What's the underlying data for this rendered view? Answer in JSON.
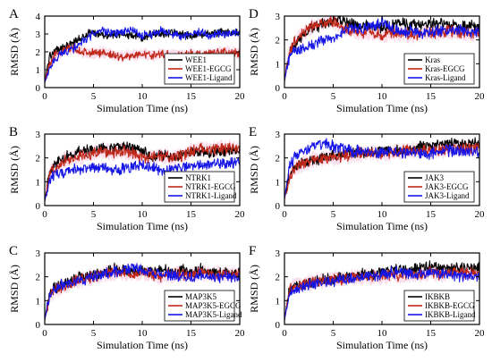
{
  "colors": {
    "black": "#000000",
    "red": "#c0281a",
    "blue": "#1515e6",
    "band_pink": "#f3b8d6"
  },
  "chart_data": [
    {
      "panel": "A",
      "type": "line",
      "xlabel": "Simulation Time (ns)",
      "ylabel": "RMSD (Å)",
      "xlim": [
        0,
        20
      ],
      "ylim": [
        0,
        4
      ],
      "xticks": [
        0,
        5,
        10,
        15,
        20
      ],
      "yticks": [
        0,
        1,
        2,
        3,
        4
      ],
      "legend_position": "right-lower",
      "series": [
        {
          "name": "WEE1",
          "color": "black",
          "x": [
            0,
            0.5,
            1,
            2,
            3,
            4,
            5,
            6,
            7,
            8,
            9,
            10,
            11,
            12,
            13,
            14,
            15,
            16,
            17,
            18,
            19,
            20
          ],
          "values": [
            0.3,
            1.8,
            2.0,
            2.3,
            2.5,
            2.9,
            3.1,
            3.0,
            2.9,
            3.0,
            2.9,
            2.8,
            3.0,
            3.0,
            3.1,
            3.0,
            2.9,
            3.0,
            3.0,
            3.1,
            3.1,
            3.1
          ]
        },
        {
          "name": "WEE1-EGCG",
          "color": "red",
          "x": [
            0,
            0.5,
            1,
            2,
            3,
            4,
            5,
            6,
            7,
            8,
            9,
            10,
            11,
            12,
            13,
            14,
            15,
            16,
            17,
            18,
            19,
            20
          ],
          "values": [
            0.3,
            1.4,
            1.8,
            2.1,
            2.2,
            2.0,
            1.9,
            2.0,
            1.8,
            1.7,
            1.8,
            1.9,
            1.8,
            1.9,
            1.8,
            1.8,
            1.9,
            1.8,
            1.9,
            2.0,
            2.0,
            1.9
          ]
        },
        {
          "name": "WEE1-Ligand",
          "color": "blue",
          "x": [
            0,
            0.5,
            1,
            2,
            3,
            4,
            5,
            6,
            7,
            8,
            9,
            10,
            11,
            12,
            13,
            14,
            15,
            16,
            17,
            18,
            19,
            20
          ],
          "values": [
            0.3,
            1.0,
            1.6,
            2.0,
            2.2,
            2.6,
            3.0,
            3.2,
            3.0,
            3.1,
            3.2,
            2.9,
            3.0,
            3.2,
            3.0,
            2.9,
            3.0,
            3.1,
            2.9,
            3.0,
            3.0,
            3.1
          ]
        }
      ]
    },
    {
      "panel": "B",
      "type": "line",
      "xlabel": "Simulation Time (ns)",
      "ylabel": "RMSD (Å)",
      "xlim": [
        0,
        20
      ],
      "ylim": [
        0,
        3
      ],
      "xticks": [
        0,
        5,
        10,
        15,
        20
      ],
      "yticks": [
        0,
        1,
        2,
        3
      ],
      "legend_position": "right-lower",
      "series": [
        {
          "name": "NTRK1",
          "color": "black",
          "x": [
            0,
            0.5,
            1,
            2,
            3,
            4,
            5,
            6,
            7,
            8,
            9,
            10,
            11,
            12,
            13,
            14,
            15,
            16,
            17,
            18,
            19,
            20
          ],
          "values": [
            0.2,
            1.4,
            1.8,
            2.0,
            2.2,
            2.3,
            2.3,
            2.4,
            2.4,
            2.5,
            2.4,
            2.3,
            2.0,
            2.1,
            2.0,
            2.1,
            2.2,
            2.3,
            2.2,
            2.3,
            2.3,
            2.3
          ]
        },
        {
          "name": "NTRK1-EGCG",
          "color": "red",
          "x": [
            0,
            0.5,
            1,
            2,
            3,
            4,
            5,
            6,
            7,
            8,
            9,
            10,
            11,
            12,
            13,
            14,
            15,
            16,
            17,
            18,
            19,
            20
          ],
          "values": [
            0.2,
            1.3,
            1.6,
            1.9,
            2.0,
            2.1,
            2.2,
            2.3,
            2.2,
            2.3,
            2.2,
            2.0,
            2.0,
            2.1,
            2.0,
            2.1,
            2.3,
            2.4,
            2.3,
            2.4,
            2.4,
            2.4
          ]
        },
        {
          "name": "NTRK1-Ligand",
          "color": "blue",
          "x": [
            0,
            0.5,
            1,
            2,
            3,
            4,
            5,
            6,
            7,
            8,
            9,
            10,
            11,
            12,
            13,
            14,
            15,
            16,
            17,
            18,
            19,
            20
          ],
          "values": [
            0.2,
            1.1,
            1.3,
            1.4,
            1.5,
            1.5,
            1.6,
            1.6,
            1.5,
            1.5,
            1.6,
            1.7,
            1.6,
            1.5,
            1.5,
            1.6,
            1.6,
            1.7,
            1.7,
            1.8,
            1.8,
            1.9
          ]
        }
      ]
    },
    {
      "panel": "C",
      "type": "line",
      "xlabel": "Simulation Time (ns)",
      "ylabel": "RMSD (Å)",
      "xlim": [
        0,
        20
      ],
      "ylim": [
        0,
        3
      ],
      "xticks": [
        0,
        5,
        10,
        15,
        20
      ],
      "yticks": [
        0,
        1,
        2,
        3
      ],
      "legend_position": "right-lower",
      "series": [
        {
          "name": "MAP3K5",
          "color": "black",
          "x": [
            0,
            0.5,
            1,
            2,
            3,
            4,
            5,
            6,
            7,
            8,
            9,
            10,
            11,
            12,
            13,
            14,
            15,
            16,
            17,
            18,
            19,
            20
          ],
          "values": [
            0.2,
            1.3,
            1.5,
            1.7,
            1.9,
            2.0,
            2.1,
            2.2,
            2.3,
            2.3,
            2.2,
            2.3,
            2.2,
            2.3,
            2.2,
            2.3,
            2.2,
            2.3,
            2.2,
            2.2,
            2.1,
            2.2
          ]
        },
        {
          "name": "MAP3K5-EGCG",
          "color": "red",
          "x": [
            0,
            0.5,
            1,
            2,
            3,
            4,
            5,
            6,
            7,
            8,
            9,
            10,
            11,
            12,
            13,
            14,
            15,
            16,
            17,
            18,
            19,
            20
          ],
          "values": [
            0.2,
            1.2,
            1.4,
            1.6,
            1.8,
            1.9,
            2.0,
            2.1,
            2.2,
            2.2,
            2.1,
            2.2,
            2.1,
            2.0,
            2.1,
            2.1,
            2.1,
            2.2,
            2.1,
            2.1,
            2.1,
            2.1
          ]
        },
        {
          "name": "MAP3K5-Ligand",
          "color": "blue",
          "x": [
            0,
            0.5,
            1,
            2,
            3,
            4,
            5,
            6,
            7,
            8,
            9,
            10,
            11,
            12,
            13,
            14,
            15,
            16,
            17,
            18,
            19,
            20
          ],
          "values": [
            0.2,
            1.2,
            1.5,
            1.7,
            1.8,
            1.9,
            2.0,
            2.1,
            2.2,
            2.3,
            2.4,
            2.3,
            2.2,
            2.1,
            2.1,
            2.0,
            2.0,
            2.1,
            2.0,
            2.0,
            2.0,
            2.0
          ]
        }
      ]
    },
    {
      "panel": "D",
      "type": "line",
      "xlabel": "Simulation Time (ns)",
      "ylabel": "RMSD (Å)",
      "xlim": [
        0,
        20
      ],
      "ylim": [
        0,
        3
      ],
      "xticks": [
        0,
        5,
        10,
        15,
        20
      ],
      "yticks": [
        0,
        1,
        2,
        3
      ],
      "legend_position": "right-lower",
      "series": [
        {
          "name": "Kras",
          "color": "black",
          "x": [
            0,
            0.5,
            1,
            2,
            3,
            4,
            5,
            6,
            7,
            8,
            9,
            10,
            11,
            12,
            13,
            14,
            15,
            16,
            17,
            18,
            19,
            20
          ],
          "values": [
            0.3,
            1.4,
            1.8,
            2.2,
            2.5,
            2.7,
            2.8,
            2.8,
            2.7,
            2.6,
            2.6,
            2.5,
            2.6,
            2.7,
            2.6,
            2.7,
            2.7,
            2.7,
            2.6,
            2.6,
            2.6,
            2.6
          ]
        },
        {
          "name": "Kras-EGCG",
          "color": "red",
          "x": [
            0,
            0.5,
            1,
            2,
            3,
            4,
            5,
            6,
            7,
            8,
            9,
            10,
            11,
            12,
            13,
            14,
            15,
            16,
            17,
            18,
            19,
            20
          ],
          "values": [
            0.3,
            1.5,
            1.9,
            2.3,
            2.6,
            2.7,
            2.8,
            2.5,
            2.4,
            2.3,
            2.3,
            2.2,
            2.3,
            2.3,
            2.2,
            2.3,
            2.3,
            2.3,
            2.4,
            2.3,
            2.3,
            2.3
          ]
        },
        {
          "name": "Kras-Ligand",
          "color": "blue",
          "x": [
            0,
            0.5,
            1,
            2,
            3,
            4,
            5,
            6,
            7,
            8,
            9,
            10,
            11,
            12,
            13,
            14,
            15,
            16,
            17,
            18,
            19,
            20
          ],
          "values": [
            0.3,
            1.3,
            1.5,
            1.6,
            1.8,
            2.0,
            2.1,
            2.4,
            2.5,
            2.5,
            2.6,
            2.8,
            2.5,
            2.3,
            2.4,
            2.3,
            2.3,
            2.4,
            2.4,
            2.4,
            2.3,
            2.4
          ]
        }
      ]
    },
    {
      "panel": "E",
      "type": "line",
      "xlabel": "Simulation Time (ns)",
      "ylabel": "RMSD (Å)",
      "xlim": [
        0,
        20
      ],
      "ylim": [
        0,
        3
      ],
      "xticks": [
        0,
        5,
        10,
        15,
        20
      ],
      "yticks": [
        0,
        1,
        2,
        3
      ],
      "legend_position": "right-lower",
      "series": [
        {
          "name": "JAK3",
          "color": "black",
          "x": [
            0,
            0.5,
            1,
            2,
            3,
            4,
            5,
            6,
            7,
            8,
            9,
            10,
            11,
            12,
            13,
            14,
            15,
            16,
            17,
            18,
            19,
            20
          ],
          "values": [
            0.3,
            1.3,
            1.6,
            1.8,
            1.9,
            2.0,
            2.1,
            2.2,
            2.2,
            2.2,
            2.2,
            2.3,
            2.3,
            2.3,
            2.4,
            2.5,
            2.5,
            2.6,
            2.6,
            2.6,
            2.6,
            2.6
          ]
        },
        {
          "name": "JAK3-EGCG",
          "color": "red",
          "x": [
            0,
            0.5,
            1,
            2,
            3,
            4,
            5,
            6,
            7,
            8,
            9,
            10,
            11,
            12,
            13,
            14,
            15,
            16,
            17,
            18,
            19,
            20
          ],
          "values": [
            0.3,
            1.2,
            1.5,
            1.8,
            1.9,
            2.0,
            2.0,
            2.1,
            2.1,
            2.2,
            2.2,
            2.2,
            2.2,
            2.3,
            2.3,
            2.3,
            2.3,
            2.3,
            2.4,
            2.4,
            2.4,
            2.4
          ]
        },
        {
          "name": "JAK3-Ligand",
          "color": "blue",
          "x": [
            0,
            0.5,
            1,
            2,
            3,
            4,
            5,
            6,
            7,
            8,
            9,
            10,
            11,
            12,
            13,
            14,
            15,
            16,
            17,
            18,
            19,
            20
          ],
          "values": [
            0.3,
            1.6,
            2.0,
            2.3,
            2.5,
            2.6,
            2.5,
            2.4,
            2.3,
            2.3,
            2.2,
            2.2,
            2.3,
            2.2,
            2.2,
            2.2,
            2.2,
            2.3,
            2.3,
            2.3,
            2.2,
            2.3
          ]
        }
      ]
    },
    {
      "panel": "F",
      "type": "line",
      "xlabel": "Simulation Time (ns)",
      "ylabel": "RMSD (Å)",
      "xlim": [
        0,
        20
      ],
      "ylim": [
        0,
        3
      ],
      "xticks": [
        0,
        5,
        10,
        15,
        20
      ],
      "yticks": [
        0,
        1,
        2,
        3
      ],
      "legend_position": "right-lower",
      "series": [
        {
          "name": "IKBKB",
          "color": "black",
          "x": [
            0,
            0.5,
            1,
            2,
            3,
            4,
            5,
            6,
            7,
            8,
            9,
            10,
            11,
            12,
            13,
            14,
            15,
            16,
            17,
            18,
            19,
            20
          ],
          "values": [
            0.2,
            1.4,
            1.6,
            1.7,
            1.8,
            1.9,
            1.9,
            2.0,
            2.0,
            2.1,
            2.1,
            2.2,
            2.3,
            2.3,
            2.3,
            2.4,
            2.4,
            2.4,
            2.3,
            2.4,
            2.4,
            2.4
          ]
        },
        {
          "name": "IKBKB-EGCG",
          "color": "red",
          "x": [
            0,
            0.5,
            1,
            2,
            3,
            4,
            5,
            6,
            7,
            8,
            9,
            10,
            11,
            12,
            13,
            14,
            15,
            16,
            17,
            18,
            19,
            20
          ],
          "values": [
            0.2,
            1.4,
            1.6,
            1.7,
            1.8,
            1.8,
            1.9,
            1.9,
            2.0,
            2.0,
            2.0,
            2.0,
            2.1,
            2.0,
            2.1,
            2.1,
            2.2,
            2.1,
            2.2,
            2.2,
            2.2,
            2.2
          ]
        },
        {
          "name": "IKBKB-Ligand",
          "color": "blue",
          "x": [
            0,
            0.5,
            1,
            2,
            3,
            4,
            5,
            6,
            7,
            8,
            9,
            10,
            11,
            12,
            13,
            14,
            15,
            16,
            17,
            18,
            19,
            20
          ],
          "values": [
            0.2,
            1.3,
            1.5,
            1.6,
            1.7,
            1.8,
            1.8,
            1.9,
            1.9,
            2.0,
            2.0,
            2.1,
            2.2,
            2.2,
            2.1,
            2.1,
            2.2,
            2.1,
            2.1,
            2.0,
            2.0,
            2.0
          ]
        }
      ]
    }
  ]
}
